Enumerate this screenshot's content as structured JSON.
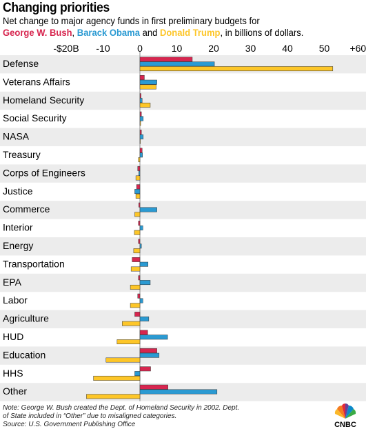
{
  "title": "Changing priorities",
  "subtitle": {
    "line1": "Net change to major agency funds in first preliminary budgets for",
    "bush": "George W. Bush",
    "sep1": ", ",
    "obama": "Barack Obama",
    "and": " and ",
    "trump": "Donald Trump",
    "tail": ", in billions of dollars."
  },
  "note": {
    "line1": "Note: George W. Bush created the Dept. of Homeland Security in 2002. Dept.",
    "line2": "of State included in “Other” due to misaligned categories.",
    "line3": "Source: U.S. Government Publishing Office"
  },
  "logo": {
    "text": "CNBC"
  },
  "colors": {
    "bush": "#d7264f",
    "obama": "#2b9ad2",
    "trump": "#fdc628",
    "stripe": "#ececec",
    "zero_line": "#8a8a8a"
  },
  "chart_data": {
    "type": "bar",
    "orientation": "horizontal",
    "x_tick_labels": [
      "-$20B",
      "-10",
      "0",
      "10",
      "20",
      "30",
      "40",
      "50",
      "+60B"
    ],
    "x_ticks": [
      -20,
      -10,
      0,
      10,
      20,
      30,
      40,
      50,
      60
    ],
    "xlim": [
      -20,
      60
    ],
    "categories": [
      "Defense",
      "Veterans Affairs",
      "Homeland Security",
      "Social Security",
      "NASA",
      "Treasury",
      "Corps of Engineers",
      "Justice",
      "Commerce",
      "Interior",
      "Energy",
      "Transportation",
      "EPA",
      "Labor",
      "Agriculture",
      "HUD",
      "Education",
      "HHS",
      "Other"
    ],
    "series": [
      {
        "name": "George W. Bush",
        "color": "#d7264f",
        "values": [
          14.2,
          1.2,
          0.3,
          0.4,
          0.4,
          0.6,
          -0.6,
          -0.9,
          -0.3,
          -0.4,
          -0.4,
          -2.1,
          -0.4,
          -0.6,
          -1.4,
          2.1,
          4.6,
          2.9,
          7.6
        ]
      },
      {
        "name": "Barack Obama",
        "color": "#2b9ad2",
        "values": [
          20.2,
          4.6,
          0.6,
          0.9,
          0.9,
          0.7,
          -0.3,
          -1.4,
          4.6,
          0.8,
          0.4,
          2.2,
          2.8,
          0.8,
          2.4,
          7.5,
          5.2,
          -1.4,
          20.9
        ]
      },
      {
        "name": "Donald Trump",
        "color": "#fdc628",
        "values": [
          52.3,
          4.4,
          2.8,
          0.2,
          0.1,
          -0.4,
          -1.1,
          -1.1,
          -1.4,
          -1.5,
          -1.7,
          -2.4,
          -2.6,
          -2.6,
          -4.8,
          -6.2,
          -9.2,
          -12.6,
          -14.5
        ]
      }
    ],
    "grid": true,
    "legend": "none (series named in subtitle)"
  }
}
